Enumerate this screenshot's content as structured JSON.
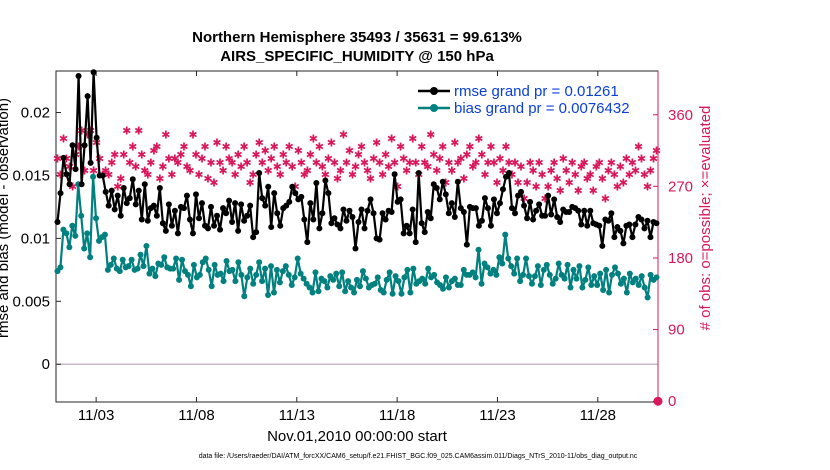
{
  "chart_data": {
    "type": "line",
    "title_line1": "Northern Hemisphere 35493 / 35631 = 99.613%",
    "title_line2": "AIRS_SPECIFIC_HUMIDITY @ 150 hPa",
    "xlabel": "Nov.01,2010 00:00:00 start",
    "ylabel_left": "rmse and bias (model - observation)",
    "ylabel_right": "# of obs: o=possible; ×=evaluated",
    "footer": "data file: /Users/raeder/DAI/ATM_forcXX/CAM6_setup/f.e21.FHIST_BGC.f09_025.CAM6assim.011/Diags_NTrS_2010-11/obs_diag_output.nc",
    "x_ticks": [
      {
        "value": 3,
        "label": "11/03"
      },
      {
        "value": 8,
        "label": "11/08"
      },
      {
        "value": 13,
        "label": "11/13"
      },
      {
        "value": 18,
        "label": "11/18"
      },
      {
        "value": 23,
        "label": "11/23"
      },
      {
        "value": 28,
        "label": "11/28"
      }
    ],
    "y_ticks_left": [
      {
        "value": 0,
        "label": "0"
      },
      {
        "value": 0.005,
        "label": "0.005"
      },
      {
        "value": 0.01,
        "label": "0.01"
      },
      {
        "value": 0.015,
        "label": "0.015"
      },
      {
        "value": 0.02,
        "label": "0.02"
      }
    ],
    "y_ticks_right": [
      {
        "value": 0,
        "label": "0"
      },
      {
        "value": 90,
        "label": "90"
      },
      {
        "value": 180,
        "label": "180"
      },
      {
        "value": 270,
        "label": "270"
      },
      {
        "value": 360,
        "label": "360"
      }
    ],
    "xlim": [
      1,
      31
    ],
    "ylim_left": [
      -0.003,
      0.0233
    ],
    "ylim_right": [
      -1,
      415
    ],
    "colors": {
      "rmse": "#000000",
      "bias": "#00807f",
      "obs": "#d9195c",
      "legend_text": "#0a3fd9",
      "right_axis": "#d9195c",
      "zero_line": "#c8b8c8"
    },
    "series": [
      {
        "name": "rmse grand pr = 0.01261",
        "key": "rmse",
        "values": [
          0.0113,
          0.0136,
          0.0164,
          0.0151,
          0.0143,
          0.0174,
          0.0155,
          0.0229,
          0.0143,
          0.0174,
          0.0213,
          0.016,
          0.0232,
          0.018,
          0.015,
          0.015,
          0.0137,
          0.0126,
          0.0138,
          0.0123,
          0.0134,
          0.0118,
          0.014,
          0.0128,
          0.0132,
          0.0147,
          0.0127,
          0.0138,
          0.0115,
          0.0143,
          0.0114,
          0.0124,
          0.0126,
          0.0118,
          0.014,
          0.0112,
          0.0106,
          0.0127,
          0.011,
          0.0122,
          0.0104,
          0.0125,
          0.0124,
          0.0134,
          0.0115,
          0.0104,
          0.0135,
          0.0116,
          0.0128,
          0.011,
          0.0108,
          0.0125,
          0.011,
          0.0118,
          0.0107,
          0.0124,
          0.012,
          0.013,
          0.0113,
          0.0128,
          0.0106,
          0.0127,
          0.0114,
          0.0118,
          0.0126,
          0.0101,
          0.0105,
          0.0152,
          0.0132,
          0.0126,
          0.0141,
          0.0109,
          0.0136,
          0.012,
          0.011,
          0.0124,
          0.0126,
          0.0129,
          0.0141,
          0.0136,
          0.0131,
          0.0133,
          0.0115,
          0.0097,
          0.0128,
          0.0115,
          0.0144,
          0.0108,
          0.012,
          0.0146,
          0.0136,
          0.0112,
          0.0116,
          0.0111,
          0.0108,
          0.0123,
          0.0114,
          0.0122,
          0.0117,
          0.0092,
          0.0113,
          0.0123,
          0.0108,
          0.0122,
          0.0131,
          0.012,
          0.01,
          0.0099,
          0.012,
          0.0115,
          0.0122,
          0.0121,
          0.0151,
          0.0129,
          0.0131,
          0.0104,
          0.011,
          0.0104,
          0.0123,
          0.0097,
          0.0152,
          0.0112,
          0.0105,
          0.0121,
          0.0116,
          0.0143,
          0.014,
          0.0131,
          0.0145,
          0.0135,
          0.012,
          0.0128,
          0.0117,
          0.0145,
          0.0124,
          0.0121,
          0.0095,
          0.0125,
          0.0124,
          0.0124,
          0.011,
          0.0114,
          0.0132,
          0.0124,
          0.011,
          0.0131,
          0.012,
          0.0128,
          0.0139,
          0.0149,
          0.0152,
          0.0124,
          0.012,
          0.0134,
          0.0137,
          0.0126,
          0.0116,
          0.0129,
          0.0115,
          0.0122,
          0.0127,
          0.0118,
          0.0118,
          0.0134,
          0.0119,
          0.0131,
          0.0117,
          0.0113,
          0.0123,
          0.0121,
          0.0121,
          0.0125,
          0.0124,
          0.0122,
          0.0111,
          0.0122,
          0.011,
          0.0122,
          0.0112,
          0.0111,
          0.011,
          0.0094,
          0.0115,
          0.0114,
          0.012,
          0.0101,
          0.0109,
          0.0106,
          0.0096,
          0.011,
          0.0111,
          0.0101,
          0.0111,
          0.0117,
          0.0115,
          0.0108,
          0.0114,
          0.0101,
          0.0113,
          0.0112
        ]
      },
      {
        "name": "bias grand pr = 0.0076432",
        "key": "bias",
        "values": [
          0.0074,
          0.0077,
          0.0107,
          0.0104,
          0.0093,
          0.011,
          0.0102,
          0.0143,
          0.0118,
          0.0092,
          0.0104,
          0.0085,
          0.0149,
          0.0116,
          0.0098,
          0.0101,
          0.0103,
          0.0075,
          0.0079,
          0.0084,
          0.0076,
          0.0074,
          0.0083,
          0.0077,
          0.0078,
          0.0083,
          0.0075,
          0.0076,
          0.0087,
          0.0078,
          0.0094,
          0.0072,
          0.0076,
          0.007,
          0.008,
          0.0079,
          0.0085,
          0.0077,
          0.0076,
          0.0076,
          0.0084,
          0.0067,
          0.0083,
          0.0074,
          0.0071,
          0.0062,
          0.0079,
          0.0069,
          0.0071,
          0.0081,
          0.0084,
          0.0075,
          0.0062,
          0.0079,
          0.0071,
          0.0072,
          0.0066,
          0.0082,
          0.0074,
          0.0075,
          0.0066,
          0.0081,
          0.0071,
          0.0054,
          0.0069,
          0.0076,
          0.0064,
          0.0071,
          0.0081,
          0.0066,
          0.0076,
          0.0055,
          0.0078,
          0.0057,
          0.0075,
          0.0065,
          0.0074,
          0.0078,
          0.0071,
          0.0063,
          0.0069,
          0.0084,
          0.0072,
          0.0068,
          0.0064,
          0.0061,
          0.0057,
          0.0073,
          0.0058,
          0.0068,
          0.0066,
          0.0061,
          0.007,
          0.0067,
          0.0072,
          0.0062,
          0.0073,
          0.0058,
          0.0066,
          0.0061,
          0.0057,
          0.0067,
          0.0062,
          0.0074,
          0.0068,
          0.0061,
          0.0063,
          0.0064,
          0.0069,
          0.0059,
          0.0057,
          0.0067,
          0.0073,
          0.0056,
          0.007,
          0.0066,
          0.0056,
          0.0069,
          0.0075,
          0.0057,
          0.0076,
          0.0064,
          0.0066,
          0.0068,
          0.0064,
          0.0076,
          0.0069,
          0.0071,
          0.0065,
          0.0063,
          0.006,
          0.0069,
          0.0061,
          0.0066,
          0.0068,
          0.0063,
          0.0063,
          0.0075,
          0.0071,
          0.0071,
          0.0073,
          0.0069,
          0.0091,
          0.0064,
          0.008,
          0.0077,
          0.0072,
          0.0075,
          0.0071,
          0.0085,
          0.008,
          0.0103,
          0.0084,
          0.0078,
          0.0072,
          0.0084,
          0.0066,
          0.0071,
          0.0084,
          0.007,
          0.0064,
          0.007,
          0.0078,
          0.0063,
          0.0075,
          0.0079,
          0.0071,
          0.0064,
          0.0068,
          0.008,
          0.0071,
          0.0068,
          0.0079,
          0.0061,
          0.0075,
          0.0068,
          0.0078,
          0.0061,
          0.0067,
          0.0077,
          0.0063,
          0.007,
          0.0063,
          0.0072,
          0.0059,
          0.0075,
          0.0057,
          0.0071,
          0.0077,
          0.0072,
          0.0064,
          0.0068,
          0.0057,
          0.0072,
          0.0065,
          0.0068,
          0.0063,
          0.007,
          0.0061,
          0.0053,
          0.0071,
          0.0067,
          0.0069
        ]
      },
      {
        "name": "# of obs (possible / evaluated)",
        "key": "obs",
        "values": [
          305,
          285,
          330,
          305,
          295,
          270,
          310,
          320,
          340,
          290,
          335,
          340,
          290,
          325,
          305,
          285,
          290,
          285,
          300,
          310,
          270,
          280,
          310,
          340,
          300,
          320,
          295,
          340,
          310,
          290,
          285,
          300,
          315,
          320,
          280,
          295,
          335,
          305,
          285,
          305,
          300,
          310,
          320,
          295,
          290,
          335,
          310,
          285,
          305,
          320,
          280,
          300,
          275,
          325,
          300,
          290,
          320,
          305,
          300,
          285,
          310,
          295,
          320,
          300,
          275,
          285,
          310,
          325,
          300,
          315,
          290,
          305,
          320,
          295,
          285,
          310,
          300,
          320,
          295,
          270,
          315,
          300,
          285,
          290,
          310,
          330,
          300,
          320,
          295,
          285,
          305,
          325,
          300,
          280,
          290,
          335,
          300,
          315,
          285,
          295,
          310,
          320,
          300,
          290,
          280,
          305,
          325,
          300,
          285,
          310,
          295,
          330,
          300,
          270,
          320,
          305,
          290,
          300,
          330,
          300,
          285,
          320,
          300,
          295,
          335,
          310,
          290,
          305,
          320,
          275,
          300,
          290,
          325,
          300,
          305,
          280,
          310,
          320,
          295,
          300,
          330,
          310,
          285,
          300,
          320,
          300,
          275,
          305,
          290,
          320,
          300,
          285,
          300,
          275,
          295,
          255,
          275,
          300,
          290,
          270,
          300,
          285,
          255,
          270,
          290,
          300,
          280,
          265,
          305,
          290,
          275,
          300,
          285,
          265,
          295,
          300,
          280,
          285,
          265,
          295,
          300,
          280,
          255,
          290,
          300,
          285,
          270,
          295,
          275,
          305,
          285,
          300,
          290,
          320,
          305,
          285,
          270,
          290,
          305,
          315
        ]
      }
    ],
    "legend": {
      "rmse_label": "rmse grand pr = 0.01261",
      "bias_label": "bias grand pr = 0.0076432"
    }
  }
}
